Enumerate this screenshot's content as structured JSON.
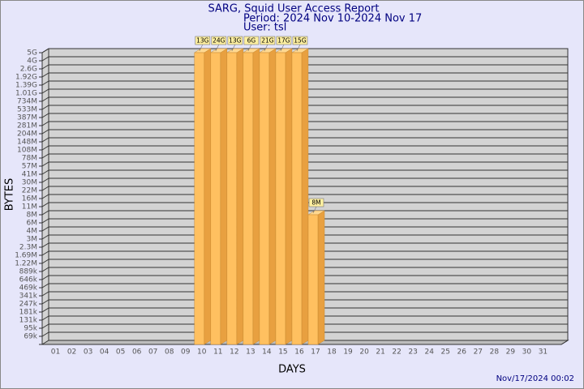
{
  "chart_data": {
    "type": "bar3d",
    "title": "SARG, Squid User Access Report",
    "subtitle": "Period: 2024 Nov 10-2024 Nov 17",
    "user": "User: tsl",
    "xlabel": "DAYS",
    "ylabel": "BYTES",
    "footer": "Nov/17/2024 00:02",
    "color": "#ffc060",
    "categories": [
      "01",
      "02",
      "03",
      "04",
      "05",
      "06",
      "07",
      "08",
      "09",
      "10",
      "11",
      "12",
      "13",
      "14",
      "15",
      "16",
      "17",
      "18",
      "19",
      "20",
      "21",
      "22",
      "23",
      "24",
      "25",
      "26",
      "27",
      "28",
      "29",
      "30",
      "31"
    ],
    "values": [
      null,
      null,
      null,
      null,
      null,
      null,
      null,
      null,
      null,
      13000000000,
      24000000000,
      13000000000,
      6000000000,
      21000000000,
      17000000000,
      15000000000,
      8000000,
      null,
      null,
      null,
      null,
      null,
      null,
      null,
      null,
      null,
      null,
      null,
      null,
      null,
      null
    ],
    "value_labels": [
      null,
      null,
      null,
      null,
      null,
      null,
      null,
      null,
      null,
      "13G",
      "24G",
      "13G",
      "6G",
      "21G",
      "17G",
      "15G",
      "8M",
      null,
      null,
      null,
      null,
      null,
      null,
      null,
      null,
      null,
      null,
      null,
      null,
      null,
      null
    ],
    "ylim": [
      0,
      5000000000
    ],
    "yticks": [
      {
        "value": 69000,
        "label": "69k"
      },
      {
        "value": 95000,
        "label": "95k"
      },
      {
        "value": 131000,
        "label": "131k"
      },
      {
        "value": 181000,
        "label": "181k"
      },
      {
        "value": 247000,
        "label": "247k"
      },
      {
        "value": 341000,
        "label": "341k"
      },
      {
        "value": 469000,
        "label": "469k"
      },
      {
        "value": 646000,
        "label": "646k"
      },
      {
        "value": 889000,
        "label": "889k"
      },
      {
        "value": 1220000,
        "label": "1.22M"
      },
      {
        "value": 1690000,
        "label": "1.69M"
      },
      {
        "value": 2300000,
        "label": "2.3M"
      },
      {
        "value": 3000000,
        "label": "3M"
      },
      {
        "value": 4000000,
        "label": "4M"
      },
      {
        "value": 6000000,
        "label": "6M"
      },
      {
        "value": 8000000,
        "label": "8M"
      },
      {
        "value": 11000000,
        "label": "11M"
      },
      {
        "value": 16000000,
        "label": "16M"
      },
      {
        "value": 22000000,
        "label": "22M"
      },
      {
        "value": 30000000,
        "label": "30M"
      },
      {
        "value": 41000000,
        "label": "41M"
      },
      {
        "value": 57000000,
        "label": "57M"
      },
      {
        "value": 78000000,
        "label": "78M"
      },
      {
        "value": 108000000,
        "label": "108M"
      },
      {
        "value": 148000000,
        "label": "148M"
      },
      {
        "value": 204000000,
        "label": "204M"
      },
      {
        "value": 281000000,
        "label": "281M"
      },
      {
        "value": 387000000,
        "label": "387M"
      },
      {
        "value": 533000000,
        "label": "533M"
      },
      {
        "value": 734000000,
        "label": "734M"
      },
      {
        "value": 1010000000,
        "label": "1.01G"
      },
      {
        "value": 1390000000,
        "label": "1.39G"
      },
      {
        "value": 1920000000,
        "label": "1.92G"
      },
      {
        "value": 2600000000,
        "label": "2.6G"
      },
      {
        "value": 4000000000,
        "label": "4G"
      },
      {
        "value": 5000000000,
        "label": "5G"
      }
    ],
    "grid": true
  }
}
